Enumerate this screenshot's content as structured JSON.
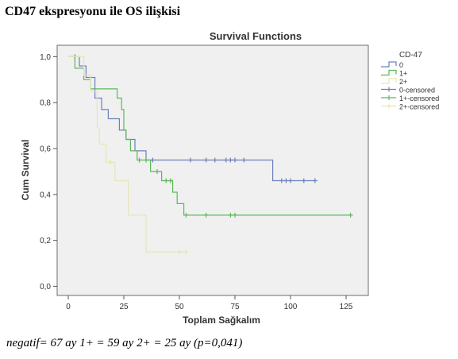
{
  "heading": "CD47 ekspresyonu ile OS ilişkisi",
  "footnote": "negatif= 67 ay 1+ = 59 ay 2+ = 25 ay (p=0,041)",
  "chart_data": {
    "type": "line",
    "subtype": "kaplan-meier-step",
    "title": "Survival Functions",
    "xlabel": "Toplam Sağkalım",
    "ylabel": "Cum Survival",
    "xlim": [
      -5,
      135
    ],
    "ylim": [
      -0.04,
      1.05
    ],
    "x_ticks": [
      0,
      25,
      50,
      75,
      100,
      125
    ],
    "y_ticks": [
      0.0,
      0.2,
      0.4,
      0.6,
      0.8,
      1.0
    ],
    "y_tick_labels": [
      "0,0",
      "0,2",
      "0,4",
      "0,6",
      "0,8",
      "1,0"
    ],
    "legend_title": "CD-47",
    "legend": [
      "0",
      "1+",
      "2+",
      "0-censored",
      "1+-censored",
      "2+-censored"
    ],
    "legend_position": "right",
    "grid": false,
    "series": [
      {
        "name": "0",
        "color": "#6f7fbf",
        "steps": [
          [
            0,
            1.0
          ],
          [
            5,
            1.0
          ],
          [
            5,
            0.96
          ],
          [
            8,
            0.96
          ],
          [
            8,
            0.91
          ],
          [
            12,
            0.91
          ],
          [
            12,
            0.82
          ],
          [
            15,
            0.82
          ],
          [
            15,
            0.77
          ],
          [
            18,
            0.77
          ],
          [
            18,
            0.73
          ],
          [
            23,
            0.73
          ],
          [
            23,
            0.68
          ],
          [
            26,
            0.68
          ],
          [
            26,
            0.64
          ],
          [
            30,
            0.64
          ],
          [
            30,
            0.59
          ],
          [
            35,
            0.59
          ],
          [
            35,
            0.55
          ],
          [
            92,
            0.55
          ],
          [
            92,
            0.46
          ],
          [
            112,
            0.46
          ]
        ],
        "censored": [
          3,
          38,
          55,
          62,
          66,
          71,
          73,
          75,
          79,
          96,
          98,
          100,
          106,
          111
        ]
      },
      {
        "name": "1+",
        "color": "#5cb85c",
        "steps": [
          [
            0,
            1.0
          ],
          [
            3,
            1.0
          ],
          [
            3,
            0.95
          ],
          [
            7,
            0.95
          ],
          [
            7,
            0.9
          ],
          [
            10,
            0.9
          ],
          [
            10,
            0.86
          ],
          [
            22,
            0.86
          ],
          [
            22,
            0.82
          ],
          [
            24,
            0.82
          ],
          [
            24,
            0.77
          ],
          [
            25,
            0.77
          ],
          [
            25,
            0.68
          ],
          [
            26,
            0.68
          ],
          [
            26,
            0.64
          ],
          [
            28,
            0.64
          ],
          [
            28,
            0.59
          ],
          [
            31,
            0.59
          ],
          [
            31,
            0.55
          ],
          [
            37,
            0.55
          ],
          [
            37,
            0.5
          ],
          [
            42,
            0.5
          ],
          [
            42,
            0.46
          ],
          [
            47,
            0.46
          ],
          [
            47,
            0.41
          ],
          [
            49,
            0.41
          ],
          [
            49,
            0.36
          ],
          [
            52,
            0.36
          ],
          [
            52,
            0.31
          ],
          [
            127,
            0.31
          ]
        ],
        "censored": [
          32,
          35,
          40,
          44,
          46,
          53,
          62,
          73,
          75,
          127
        ]
      },
      {
        "name": "2+",
        "color": "#e7e5b5",
        "steps": [
          [
            0,
            1.0
          ],
          [
            7,
            1.0
          ],
          [
            7,
            0.92
          ],
          [
            10,
            0.92
          ],
          [
            10,
            0.85
          ],
          [
            13,
            0.85
          ],
          [
            13,
            0.69
          ],
          [
            14,
            0.69
          ],
          [
            14,
            0.62
          ],
          [
            17,
            0.62
          ],
          [
            17,
            0.54
          ],
          [
            21,
            0.54
          ],
          [
            21,
            0.46
          ],
          [
            27,
            0.46
          ],
          [
            27,
            0.31
          ],
          [
            35,
            0.31
          ],
          [
            35,
            0.15
          ],
          [
            53,
            0.15
          ]
        ],
        "censored": [
          19,
          50,
          53
        ]
      }
    ]
  }
}
